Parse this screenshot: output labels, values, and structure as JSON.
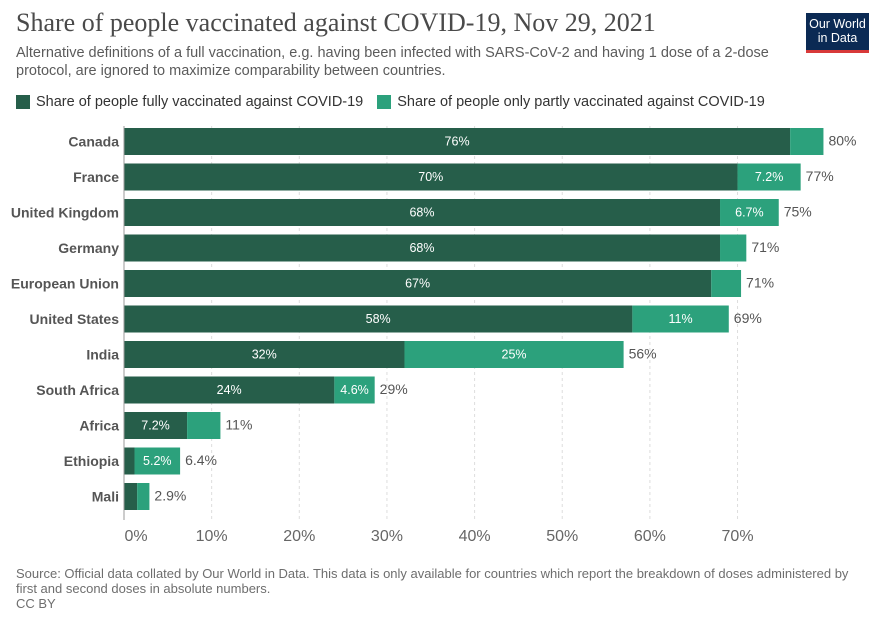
{
  "header": {
    "title": "Share of people vaccinated against COVID-19, Nov 29, 2021",
    "subtitle": "Alternative definitions of a full vaccination, e.g. having been infected with SARS-CoV-2 and having 1 dose of a 2-dose protocol, are ignored to maximize comparability between countries.",
    "logo_line1": "Our World",
    "logo_line2": "in Data"
  },
  "legend": {
    "full_label": "Share of people fully vaccinated against COVID-19",
    "partial_label": "Share of people only partly vaccinated against COVID-19"
  },
  "colors": {
    "full": "#265e4a",
    "partial": "#2ca17c",
    "logo_bg": "#0b2a54",
    "logo_line": "#d83939"
  },
  "footer": {
    "source": "Source: Official data collated by Our World in Data. This data is only available for countries which report the breakdown of doses administered by first and second doses in absolute numbers.",
    "license": "CC BY"
  },
  "chart_data": {
    "type": "bar",
    "orientation": "horizontal",
    "stacked": true,
    "title": "Share of people vaccinated against COVID-19, Nov 29, 2021",
    "categories": [
      "Canada",
      "France",
      "United Kingdom",
      "Germany",
      "European Union",
      "United States",
      "India",
      "South Africa",
      "Africa",
      "Ethiopia",
      "Mali"
    ],
    "series": [
      {
        "name": "Share of people fully vaccinated against COVID-19",
        "values": [
          76,
          70,
          68,
          68,
          67,
          58,
          32,
          24,
          7.2,
          1.2,
          1.5
        ],
        "labels": [
          "76%",
          "70%",
          "68%",
          "68%",
          "67%",
          "58%",
          "32%",
          "24%",
          "7.2%",
          "",
          ""
        ]
      },
      {
        "name": "Share of people only partly vaccinated against COVID-19",
        "values": [
          3.8,
          7.2,
          6.7,
          3.0,
          3.4,
          11,
          25,
          4.6,
          3.8,
          5.2,
          1.4
        ],
        "labels": [
          "",
          "7.2%",
          "6.7%",
          "",
          "",
          "11%",
          "25%",
          "4.6%",
          "",
          "5.2%",
          ""
        ]
      }
    ],
    "totals": [
      "80%",
      "77%",
      "75%",
      "71%",
      "71%",
      "69%",
      "56%",
      "29%",
      "11%",
      "6.4%",
      "2.9%"
    ],
    "xlim": [
      0,
      80
    ],
    "xticks": [
      0,
      10,
      20,
      30,
      40,
      50,
      60,
      70
    ],
    "xtick_labels": [
      "0%",
      "10%",
      "20%",
      "30%",
      "40%",
      "50%",
      "60%",
      "70%"
    ],
    "grid": true
  }
}
